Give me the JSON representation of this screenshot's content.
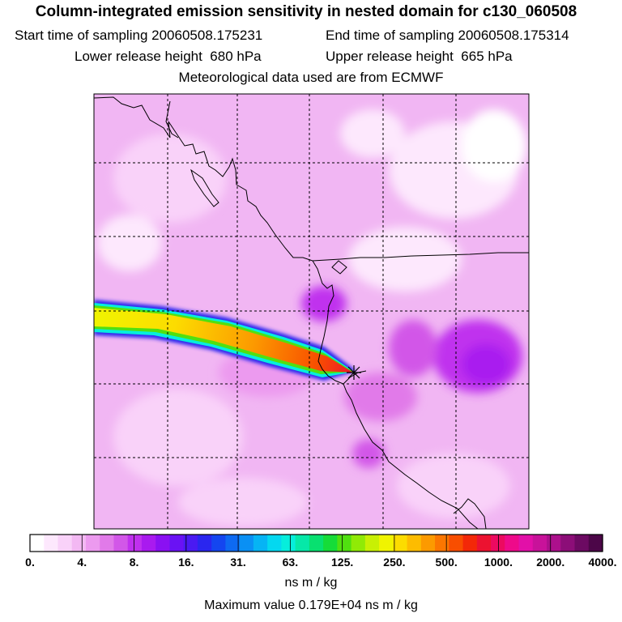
{
  "title": "Column-integrated emission sensitivity in nested domain for c130_060508",
  "info": {
    "start_label": "Start time of sampling",
    "start_value": "20060508.175231",
    "end_label": "End time of sampling",
    "end_value": "20060508.175314",
    "lower_label": "Lower release height",
    "lower_value": "680 hPa",
    "upper_label": "Upper release height",
    "upper_value": "665 hPa",
    "met_text": "Meteorological data used are from ECMWF"
  },
  "colorbar": {
    "tick_labels": [
      "0.",
      "4.",
      "8.",
      "16.",
      "31.",
      "63.",
      "125.",
      "250.",
      "500.",
      "1000.",
      "2000.",
      "4000."
    ],
    "units": "ns m / kg",
    "colors": [
      "#ffffff",
      "#fde8fd",
      "#f9d2f9",
      "#f3b8f3",
      "#ec9aef",
      "#e17ae9",
      "#d257e8",
      "#c030ee",
      "#a91aef",
      "#8a10f2",
      "#6a12f4",
      "#4a1af2",
      "#2a26ef",
      "#1446f0",
      "#0e6af2",
      "#0a90f4",
      "#06b4f4",
      "#04d8f0",
      "#06eedc",
      "#06e8a8",
      "#08e070",
      "#16dc38",
      "#50e010",
      "#90ea06",
      "#c8f004",
      "#f0f400",
      "#fcdc00",
      "#fdbc00",
      "#fc9a00",
      "#fb7600",
      "#f84e00",
      "#f32808",
      "#ec1230",
      "#ec0a60",
      "#ee0a8a",
      "#e210a8",
      "#c8129a",
      "#ac108c",
      "#8c0e78",
      "#6c0a62",
      "#4c0648"
    ]
  },
  "max_value_text": "Maximum value  0.179E+04 ns m / kg",
  "release_marker": "release-point"
}
